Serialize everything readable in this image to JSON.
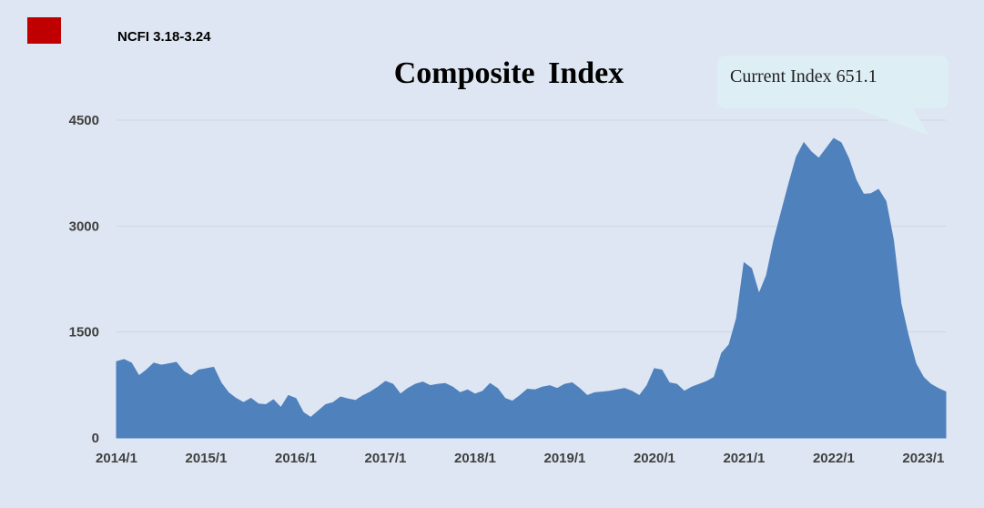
{
  "legend": {
    "label": "NCFI 3.18-3.24",
    "color": "#c00000"
  },
  "callout": {
    "text": "Current Index 651.1"
  },
  "colors": {
    "background": "#dde6f2",
    "area": "#4f81bd",
    "grid": "#cdd6e3",
    "callout": "#ddeef5"
  },
  "chart_data": {
    "type": "area",
    "title": "Composite Index",
    "xlabel": "",
    "ylabel": "",
    "ylim": [
      0,
      4500
    ],
    "xlim": [
      "2014-01",
      "2023-04"
    ],
    "yticks": [
      "0",
      "1500",
      "3000",
      "4500"
    ],
    "xticks": [
      "2014/1",
      "2015/1",
      "2016/1",
      "2017/1",
      "2018/1",
      "2019/1",
      "2020/1",
      "2021/1",
      "2022/1",
      "2023/1"
    ],
    "grid": true,
    "annotation": "Current Index 651.1",
    "series": [
      {
        "name": "NCFI 3.18-3.24",
        "points": [
          [
            "2014-01",
            1080
          ],
          [
            "2014-02",
            1110
          ],
          [
            "2014-03",
            1060
          ],
          [
            "2014-04",
            880
          ],
          [
            "2014-05",
            960
          ],
          [
            "2014-06",
            1060
          ],
          [
            "2014-07",
            1030
          ],
          [
            "2014-08",
            1050
          ],
          [
            "2014-09",
            1070
          ],
          [
            "2014-10",
            940
          ],
          [
            "2014-11",
            880
          ],
          [
            "2014-12",
            960
          ],
          [
            "2015-01",
            980
          ],
          [
            "2015-02",
            1000
          ],
          [
            "2015-03",
            780
          ],
          [
            "2015-04",
            640
          ],
          [
            "2015-05",
            560
          ],
          [
            "2015-06",
            500
          ],
          [
            "2015-07",
            560
          ],
          [
            "2015-08",
            480
          ],
          [
            "2015-09",
            470
          ],
          [
            "2015-10",
            540
          ],
          [
            "2015-11",
            430
          ],
          [
            "2015-12",
            600
          ],
          [
            "2016-01",
            560
          ],
          [
            "2016-02",
            360
          ],
          [
            "2016-03",
            290
          ],
          [
            "2016-04",
            380
          ],
          [
            "2016-05",
            470
          ],
          [
            "2016-06",
            500
          ],
          [
            "2016-07",
            580
          ],
          [
            "2016-08",
            550
          ],
          [
            "2016-09",
            530
          ],
          [
            "2016-10",
            600
          ],
          [
            "2016-11",
            650
          ],
          [
            "2016-12",
            720
          ],
          [
            "2017-01",
            800
          ],
          [
            "2017-02",
            760
          ],
          [
            "2017-03",
            620
          ],
          [
            "2017-04",
            700
          ],
          [
            "2017-05",
            760
          ],
          [
            "2017-06",
            790
          ],
          [
            "2017-07",
            740
          ],
          [
            "2017-08",
            760
          ],
          [
            "2017-09",
            770
          ],
          [
            "2017-10",
            720
          ],
          [
            "2017-11",
            640
          ],
          [
            "2017-12",
            680
          ],
          [
            "2018-01",
            620
          ],
          [
            "2018-02",
            660
          ],
          [
            "2018-03",
            770
          ],
          [
            "2018-04",
            700
          ],
          [
            "2018-05",
            560
          ],
          [
            "2018-06",
            520
          ],
          [
            "2018-07",
            600
          ],
          [
            "2018-08",
            690
          ],
          [
            "2018-09",
            680
          ],
          [
            "2018-10",
            720
          ],
          [
            "2018-11",
            740
          ],
          [
            "2018-12",
            700
          ],
          [
            "2019-01",
            760
          ],
          [
            "2019-02",
            780
          ],
          [
            "2019-03",
            700
          ],
          [
            "2019-04",
            600
          ],
          [
            "2019-05",
            640
          ],
          [
            "2019-06",
            650
          ],
          [
            "2019-07",
            660
          ],
          [
            "2019-08",
            680
          ],
          [
            "2019-09",
            700
          ],
          [
            "2019-10",
            660
          ],
          [
            "2019-11",
            600
          ],
          [
            "2019-12",
            740
          ],
          [
            "2020-01",
            980
          ],
          [
            "2020-02",
            960
          ],
          [
            "2020-03",
            780
          ],
          [
            "2020-04",
            760
          ],
          [
            "2020-05",
            660
          ],
          [
            "2020-06",
            720
          ],
          [
            "2020-07",
            760
          ],
          [
            "2020-08",
            800
          ],
          [
            "2020-09",
            860
          ],
          [
            "2020-10",
            1200
          ],
          [
            "2020-11",
            1320
          ],
          [
            "2020-12",
            1700
          ],
          [
            "2021-01",
            2480
          ],
          [
            "2021-02",
            2400
          ],
          [
            "2021-03",
            2040
          ],
          [
            "2021-04",
            2300
          ],
          [
            "2021-05",
            2800
          ],
          [
            "2021-06",
            3200
          ],
          [
            "2021-07",
            3600
          ],
          [
            "2021-08",
            3980
          ],
          [
            "2021-09",
            4180
          ],
          [
            "2021-10",
            4050
          ],
          [
            "2021-11",
            3960
          ],
          [
            "2021-12",
            4100
          ],
          [
            "2022-01",
            4240
          ],
          [
            "2022-02",
            4180
          ],
          [
            "2022-03",
            3960
          ],
          [
            "2022-04",
            3650
          ],
          [
            "2022-05",
            3450
          ],
          [
            "2022-06",
            3460
          ],
          [
            "2022-07",
            3520
          ],
          [
            "2022-08",
            3350
          ],
          [
            "2022-09",
            2800
          ],
          [
            "2022-10",
            1900
          ],
          [
            "2022-11",
            1440
          ],
          [
            "2022-12",
            1050
          ],
          [
            "2023-01",
            860
          ],
          [
            "2023-02",
            760
          ],
          [
            "2023-03",
            700
          ],
          [
            "2023-04",
            651
          ]
        ]
      }
    ]
  }
}
